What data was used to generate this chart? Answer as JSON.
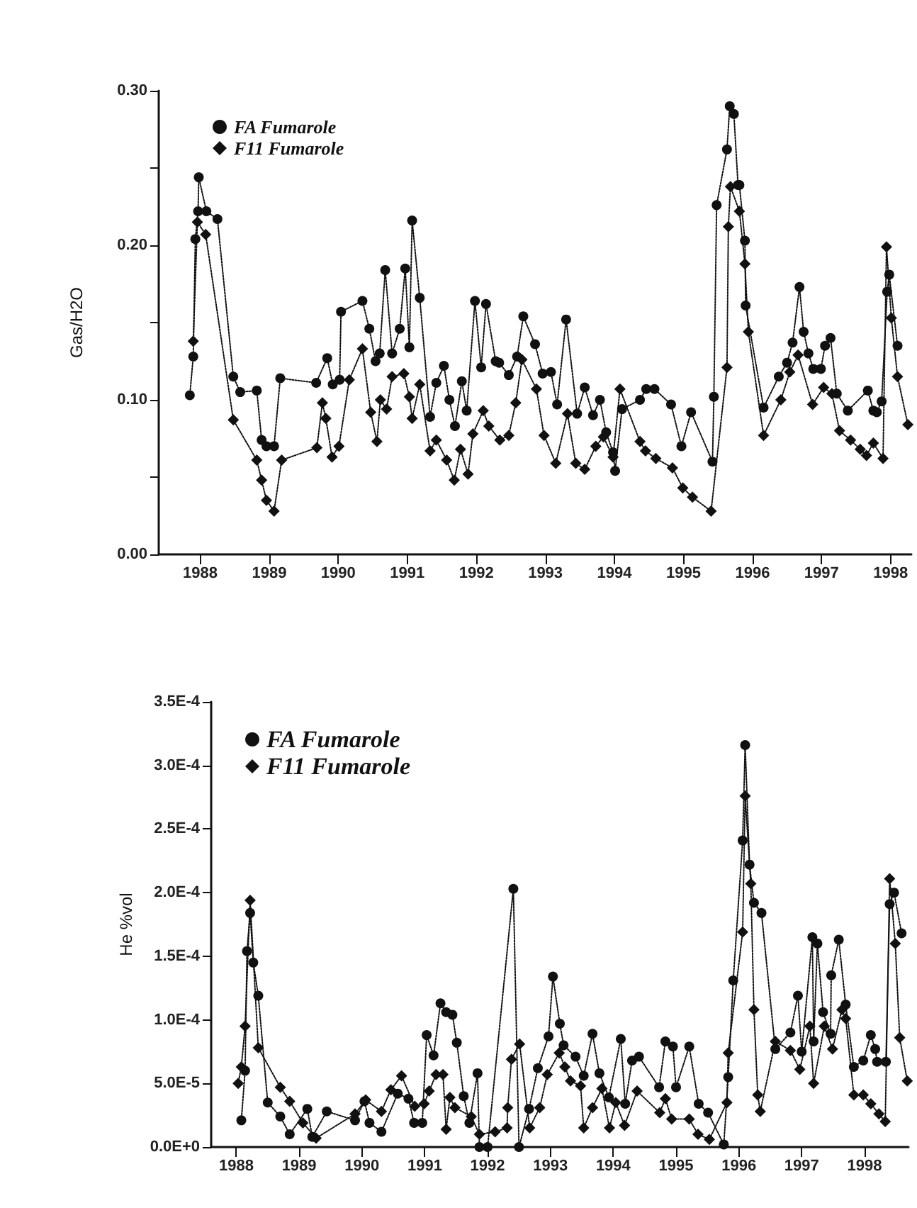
{
  "chart_data": [
    {
      "type": "line",
      "ylabel": "Gas/H2O",
      "xlim": [
        1987.4,
        1998.3
      ],
      "xticks": [
        1988,
        1989,
        1990,
        1991,
        1992,
        1993,
        1994,
        1995,
        1996,
        1997,
        1998
      ],
      "ylim": [
        0,
        0.3
      ],
      "yticks": [
        {
          "value": 0,
          "label": "0.00"
        },
        {
          "value": 0.05,
          "label": null
        },
        {
          "value": 0.1,
          "label": "0.10"
        },
        {
          "value": 0.15,
          "label": null
        },
        {
          "value": 0.2,
          "label": "0.20"
        },
        {
          "value": 0.25,
          "label": null
        },
        {
          "value": 0.3,
          "label": "0.30"
        }
      ],
      "grid": false,
      "legend": "top left",
      "line_style": "dotted",
      "series": [
        {
          "name": "FA Fumarole",
          "color": "#111111",
          "marker": "circle",
          "x": [
            1987.85,
            1987.9,
            1987.93,
            1987.97,
            1987.98,
            1988.09,
            1988.25,
            1988.48,
            1988.58,
            1988.82,
            1988.89,
            1988.96,
            1989.07,
            1989.16,
            1989.68,
            1989.84,
            1989.92,
            1990.02,
            1990.04,
            1990.35,
            1990.45,
            1990.54,
            1990.6,
            1990.68,
            1990.78,
            1990.89,
            1990.97,
            1991.03,
            1991.07,
            1991.18,
            1991.33,
            1991.42,
            1991.53,
            1991.61,
            1991.69,
            1991.79,
            1991.86,
            1991.98,
            1992.07,
            1992.14,
            1992.28,
            1992.33,
            1992.47,
            1992.59,
            1992.68,
            1992.85,
            1992.96,
            1993.08,
            1993.17,
            1993.3,
            1993.46,
            1993.57,
            1993.69,
            1993.79,
            1993.88,
            1993.98,
            1994.01,
            1994.11,
            1994.37,
            1994.46,
            1994.58,
            1994.82,
            1994.97,
            1995.11,
            1995.42,
            1995.44,
            1995.48,
            1995.63,
            1995.67,
            1995.73,
            1995.79,
            1995.81,
            1995.89,
            1995.9,
            1996.16,
            1996.38,
            1996.5,
            1996.58,
            1996.68,
            1996.74,
            1996.81,
            1996.88,
            1996.99,
            1997.05,
            1997.13,
            1997.22,
            1997.38,
            1997.67,
            1997.75,
            1997.8,
            1997.87,
            1997.95,
            1997.98,
            1998.1
          ],
          "values": [
            0.103,
            0.128,
            0.204,
            0.222,
            0.244,
            0.222,
            0.217,
            0.115,
            0.105,
            0.106,
            0.074,
            0.07,
            0.07,
            0.114,
            0.111,
            0.127,
            0.11,
            0.113,
            0.157,
            0.164,
            0.146,
            0.125,
            0.13,
            0.184,
            0.13,
            0.146,
            0.185,
            0.134,
            0.216,
            0.166,
            0.089,
            0.111,
            0.122,
            0.1,
            0.083,
            0.112,
            0.093,
            0.164,
            0.121,
            0.162,
            0.125,
            0.124,
            0.116,
            0.128,
            0.154,
            0.136,
            0.117,
            0.118,
            0.097,
            0.152,
            0.091,
            0.108,
            0.09,
            0.1,
            0.079,
            0.066,
            0.054,
            0.094,
            0.1,
            0.107,
            0.107,
            0.097,
            0.07,
            0.092,
            0.06,
            0.102,
            0.226,
            0.262,
            0.29,
            0.285,
            0.239,
            0.239,
            0.203,
            0.161,
            0.095,
            0.115,
            0.124,
            0.137,
            0.173,
            0.144,
            0.13,
            0.12,
            0.12,
            0.135,
            0.14,
            0.104,
            0.093,
            0.106,
            0.093,
            0.092,
            0.099,
            0.17,
            0.181,
            0.135
          ]
        },
        {
          "name": "F11 Fumarole",
          "color": "#111111",
          "marker": "diamond",
          "x": [
            1987.9,
            1987.96,
            1988.08,
            1988.48,
            1988.82,
            1988.89,
            1988.96,
            1989.07,
            1989.18,
            1989.69,
            1989.77,
            1989.82,
            1989.91,
            1990.01,
            1990.16,
            1990.35,
            1990.47,
            1990.56,
            1990.61,
            1990.7,
            1990.78,
            1990.95,
            1991.03,
            1991.07,
            1991.18,
            1991.33,
            1991.42,
            1991.57,
            1991.68,
            1991.77,
            1991.88,
            1991.95,
            1992.1,
            1992.18,
            1992.34,
            1992.47,
            1992.57,
            1992.66,
            1992.87,
            1992.98,
            1993.15,
            1993.32,
            1993.44,
            1993.57,
            1993.73,
            1993.84,
            1993.98,
            1994.08,
            1994.37,
            1994.45,
            1994.6,
            1994.84,
            1994.99,
            1995.13,
            1995.4,
            1995.63,
            1995.65,
            1995.68,
            1995.81,
            1995.89,
            1995.94,
            1996.16,
            1996.41,
            1996.54,
            1996.66,
            1996.87,
            1997.03,
            1997.15,
            1997.26,
            1997.42,
            1997.56,
            1997.65,
            1997.75,
            1997.89,
            1997.94,
            1998.01,
            1998.1,
            1998.25
          ],
          "values": [
            0.138,
            0.215,
            0.207,
            0.087,
            0.061,
            0.048,
            0.035,
            0.028,
            0.061,
            0.069,
            0.098,
            0.088,
            0.063,
            0.07,
            0.113,
            0.133,
            0.092,
            0.073,
            0.1,
            0.094,
            0.115,
            0.117,
            0.102,
            0.088,
            0.11,
            0.067,
            0.074,
            0.061,
            0.048,
            0.068,
            0.052,
            0.078,
            0.093,
            0.083,
            0.074,
            0.077,
            0.098,
            0.126,
            0.107,
            0.077,
            0.059,
            0.091,
            0.059,
            0.055,
            0.07,
            0.076,
            0.063,
            0.107,
            0.073,
            0.067,
            0.062,
            0.056,
            0.043,
            0.037,
            0.028,
            0.121,
            0.212,
            0.238,
            0.222,
            0.188,
            0.144,
            0.077,
            0.1,
            0.118,
            0.129,
            0.097,
            0.108,
            0.104,
            0.08,
            0.074,
            0.068,
            0.064,
            0.072,
            0.062,
            0.199,
            0.153,
            0.115,
            0.084
          ]
        }
      ]
    },
    {
      "type": "line",
      "ylabel": "He %vol",
      "xlim": [
        1987.6,
        1998.7
      ],
      "xticks": [
        1988,
        1989,
        1990,
        1991,
        1992,
        1993,
        1994,
        1995,
        1996,
        1997,
        1998
      ],
      "ylim": [
        0,
        0.00035
      ],
      "yticks": [
        {
          "value": 0,
          "label": "0.0E+0"
        },
        {
          "value": 5e-05,
          "label": "5.0E-5"
        },
        {
          "value": 0.0001,
          "label": "1.0E-4"
        },
        {
          "value": 0.00015,
          "label": "1.5E-4"
        },
        {
          "value": 0.0002,
          "label": "2.0E-4"
        },
        {
          "value": 0.00025,
          "label": "2.5E-4"
        },
        {
          "value": 0.0003,
          "label": "3.0E-4"
        },
        {
          "value": 0.00035,
          "label": "3.5E-4"
        }
      ],
      "grid": false,
      "legend": "top left",
      "line_style": "dotted",
      "series": [
        {
          "name": "FA Fumarole",
          "color": "#111111",
          "marker": "circle",
          "x": [
            1988.08,
            1988.14,
            1988.17,
            1988.22,
            1988.27,
            1988.35,
            1988.5,
            1988.7,
            1988.85,
            1989.13,
            1989.21,
            1989.44,
            1989.89,
            1990.04,
            1990.12,
            1990.31,
            1990.57,
            1990.74,
            1990.83,
            1990.96,
            1991.03,
            1991.14,
            1991.25,
            1991.34,
            1991.44,
            1991.51,
            1991.62,
            1991.71,
            1991.84,
            1991.87,
            1992.0,
            1992.41,
            1992.5,
            1992.66,
            1992.8,
            1992.97,
            1993.04,
            1993.15,
            1993.21,
            1993.4,
            1993.53,
            1993.67,
            1993.78,
            1993.93,
            1994.12,
            1994.19,
            1994.3,
            1994.41,
            1994.73,
            1994.83,
            1994.95,
            1995.0,
            1995.21,
            1995.36,
            1995.51,
            1995.76,
            1995.83,
            1995.91,
            1996.06,
            1996.1,
            1996.17,
            1996.24,
            1996.36,
            1996.58,
            1996.82,
            1996.94,
            1997.0,
            1997.17,
            1997.19,
            1997.25,
            1997.34,
            1997.46,
            1997.47,
            1997.59,
            1997.7,
            1997.83,
            1997.98,
            1998.1,
            1998.17,
            1998.2,
            1998.34,
            1998.4,
            1998.47,
            1998.59
          ],
          "values": [
            2.1e-05,
            6e-05,
            0.000154,
            0.000184,
            0.000145,
            0.000119,
            3.5e-05,
            2.4e-05,
            1e-05,
            3e-05,
            8e-06,
            2.8e-05,
            2.1e-05,
            3.6e-05,
            1.9e-05,
            1.2e-05,
            4.2e-05,
            3.8e-05,
            1.9e-05,
            1.9e-05,
            8.8e-05,
            7.2e-05,
            0.000113,
            0.000106,
            0.000104,
            8.2e-05,
            4e-05,
            1.9e-05,
            5.8e-05,
            0,
            0,
            0.000203,
            0,
            3e-05,
            6.2e-05,
            8.7e-05,
            0.000134,
            9.7e-05,
            8e-05,
            7.1e-05,
            5.6e-05,
            8.9e-05,
            5.8e-05,
            3.9e-05,
            8.5e-05,
            3.4e-05,
            6.8e-05,
            7.1e-05,
            4.7e-05,
            8.3e-05,
            7.9e-05,
            4.7e-05,
            7.9e-05,
            3.4e-05,
            2.7e-05,
            2e-06,
            5.5e-05,
            0.000131,
            0.000241,
            0.000316,
            0.000222,
            0.000192,
            0.000184,
            7.7e-05,
            9e-05,
            0.000119,
            7.5e-05,
            0.000165,
            8.3e-05,
            0.00016,
            0.000106,
            8.9e-05,
            0.000135,
            0.000163,
            0.000112,
            6.3e-05,
            6.8e-05,
            8.8e-05,
            7.7e-05,
            6.7e-05,
            6.7e-05,
            0.000191,
            0.0002,
            0.000168
          ]
        },
        {
          "name": "F11 Fumarole",
          "color": "#111111",
          "marker": "diamond",
          "x": [
            1988.03,
            1988.08,
            1988.14,
            1988.22,
            1988.35,
            1988.7,
            1988.85,
            1989.06,
            1989.27,
            1989.89,
            1990.06,
            1990.31,
            1990.46,
            1990.63,
            1990.84,
            1990.99,
            1991.07,
            1991.18,
            1991.29,
            1991.34,
            1991.4,
            1991.48,
            1991.74,
            1991.87,
            1992.12,
            1992.31,
            1992.32,
            1992.38,
            1992.51,
            1992.67,
            1992.83,
            1992.95,
            1993.14,
            1993.23,
            1993.32,
            1993.48,
            1993.53,
            1993.67,
            1993.82,
            1993.94,
            1994.04,
            1994.18,
            1994.38,
            1994.74,
            1994.83,
            1994.93,
            1995.21,
            1995.35,
            1995.53,
            1995.81,
            1995.83,
            1996.06,
            1996.1,
            1996.19,
            1996.24,
            1996.3,
            1996.34,
            1996.58,
            1996.82,
            1996.97,
            1997.13,
            1997.19,
            1997.36,
            1997.49,
            1997.64,
            1997.7,
            1997.83,
            1997.98,
            1998.1,
            1998.23,
            1998.33,
            1998.4,
            1998.49,
            1998.56,
            1998.68
          ],
          "values": [
            5e-05,
            6.3e-05,
            9.5e-05,
            0.000194,
            7.8e-05,
            4.7e-05,
            3.6e-05,
            1.9e-05,
            7e-06,
            2.6e-05,
            3.7e-05,
            2.8e-05,
            4.5e-05,
            5.6e-05,
            3.2e-05,
            3.4e-05,
            4.4e-05,
            5.7e-05,
            5.7e-05,
            1.4e-05,
            3.9e-05,
            3.1e-05,
            2.4e-05,
            1e-05,
            1.2e-05,
            1.5e-05,
            3.1e-05,
            6.9e-05,
            8.1e-05,
            1.5e-05,
            3.1e-05,
            5.7e-05,
            7.4e-05,
            6.3e-05,
            5.2e-05,
            4.8e-05,
            1.5e-05,
            3.1e-05,
            4.6e-05,
            1.5e-05,
            3.5e-05,
            1.7e-05,
            4.4e-05,
            2.7e-05,
            3.8e-05,
            2.2e-05,
            2.2e-05,
            1e-05,
            6e-06,
            3.5e-05,
            7.4e-05,
            0.000169,
            0.000276,
            0.000207,
            0.000108,
            4.1e-05,
            2.8e-05,
            8.3e-05,
            7.6e-05,
            6.1e-05,
            9.5e-05,
            5e-05,
            9.5e-05,
            7.7e-05,
            0.000108,
            0.000101,
            4.1e-05,
            4.1e-05,
            3.4e-05,
            2.6e-05,
            2e-05,
            0.000211,
            0.00016,
            8.6e-05,
            5.2e-05
          ]
        }
      ]
    }
  ]
}
